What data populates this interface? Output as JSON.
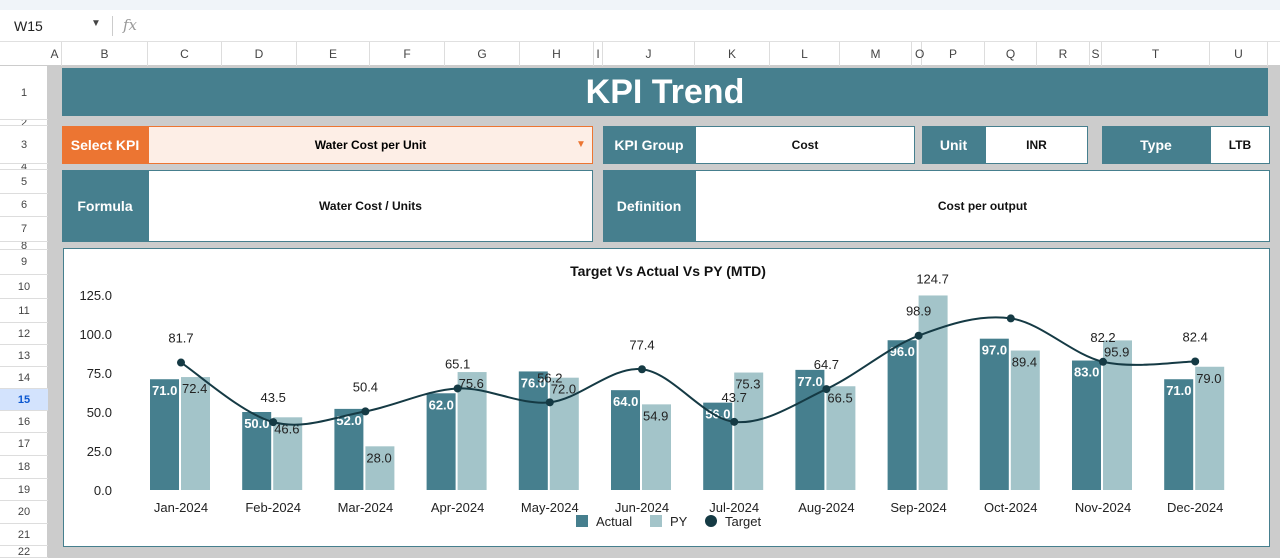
{
  "formula_bar": {
    "name_box": "W15",
    "fx_icon": "fx"
  },
  "columns": [
    "A",
    "B",
    "C",
    "D",
    "E",
    "F",
    "G",
    "H",
    "I",
    "J",
    "K",
    "L",
    "M",
    "O",
    "P",
    "Q",
    "R",
    "S",
    "T",
    "U"
  ],
  "rows": [
    "1",
    "2",
    "3",
    "4",
    "5",
    "6",
    "7",
    "8",
    "9",
    "10",
    "11",
    "12",
    "13",
    "14",
    "15",
    "16",
    "17",
    "18",
    "19",
    "20",
    "21",
    "22"
  ],
  "selected_row": "15",
  "dashboard": {
    "title": "KPI Trend",
    "select_kpi_label": "Select KPI",
    "select_kpi_value": "Water Cost per Unit",
    "kpi_group_label": "KPI Group",
    "kpi_group_value": "Cost",
    "unit_label": "Unit",
    "unit_value": "INR",
    "type_label": "Type",
    "type_value": "LTB",
    "formula_label": "Formula",
    "formula_value": "Water Cost / Units",
    "definition_label": "Definition",
    "definition_value": "Cost per output"
  },
  "colors": {
    "teal": "#467f8e",
    "orange": "#ec7532",
    "actual": "#467f8e",
    "py": "#a3c4c9",
    "target": "#153a44"
  },
  "chart_data": {
    "type": "bar+line",
    "title": "Target Vs Actual Vs PY (MTD)",
    "categories": [
      "Jan-2024",
      "Feb-2024",
      "Mar-2024",
      "Apr-2024",
      "May-2024",
      "Jun-2024",
      "Jul-2024",
      "Aug-2024",
      "Sep-2024",
      "Oct-2024",
      "Nov-2024",
      "Dec-2024"
    ],
    "ylim": [
      0,
      125
    ],
    "yticks": [
      "0.0",
      "25.0",
      "50.0",
      "75.0",
      "100.0",
      "125.0"
    ],
    "grid": false,
    "legend": "bottom",
    "series": [
      {
        "name": "Actual",
        "type": "bar",
        "values": [
          71.0,
          50.0,
          52.0,
          62.0,
          76.0,
          64.0,
          56.0,
          77.0,
          96.0,
          97.0,
          83.0,
          71.0
        ],
        "labels": [
          "71.0",
          "50.0",
          "52.0",
          "62.0",
          "76.0",
          "64.0",
          "56.0",
          "77.0",
          "96.0",
          "97.0",
          "83.0",
          "71.0"
        ]
      },
      {
        "name": "PY",
        "type": "bar",
        "values": [
          72.4,
          46.6,
          28.0,
          75.6,
          72.0,
          54.9,
          75.3,
          66.5,
          124.7,
          89.4,
          95.9,
          79.0
        ],
        "labels": [
          "72.4",
          "46.6",
          "28.0",
          "75.6",
          "72.0",
          "54.9",
          "75.3",
          "66.5",
          "124.7",
          "89.4",
          "95.9",
          "79.0"
        ]
      },
      {
        "name": "Target",
        "type": "line",
        "values": [
          81.7,
          43.5,
          50.4,
          65.1,
          56.2,
          77.4,
          43.7,
          64.7,
          98.9,
          110,
          82.2,
          82.4
        ],
        "labels": [
          "81.7",
          "43.5",
          "50.4",
          "65.1",
          "56.2",
          "77.4",
          "43.7",
          "64.7",
          "98.9",
          "",
          "82.2",
          "82.4"
        ]
      }
    ]
  }
}
